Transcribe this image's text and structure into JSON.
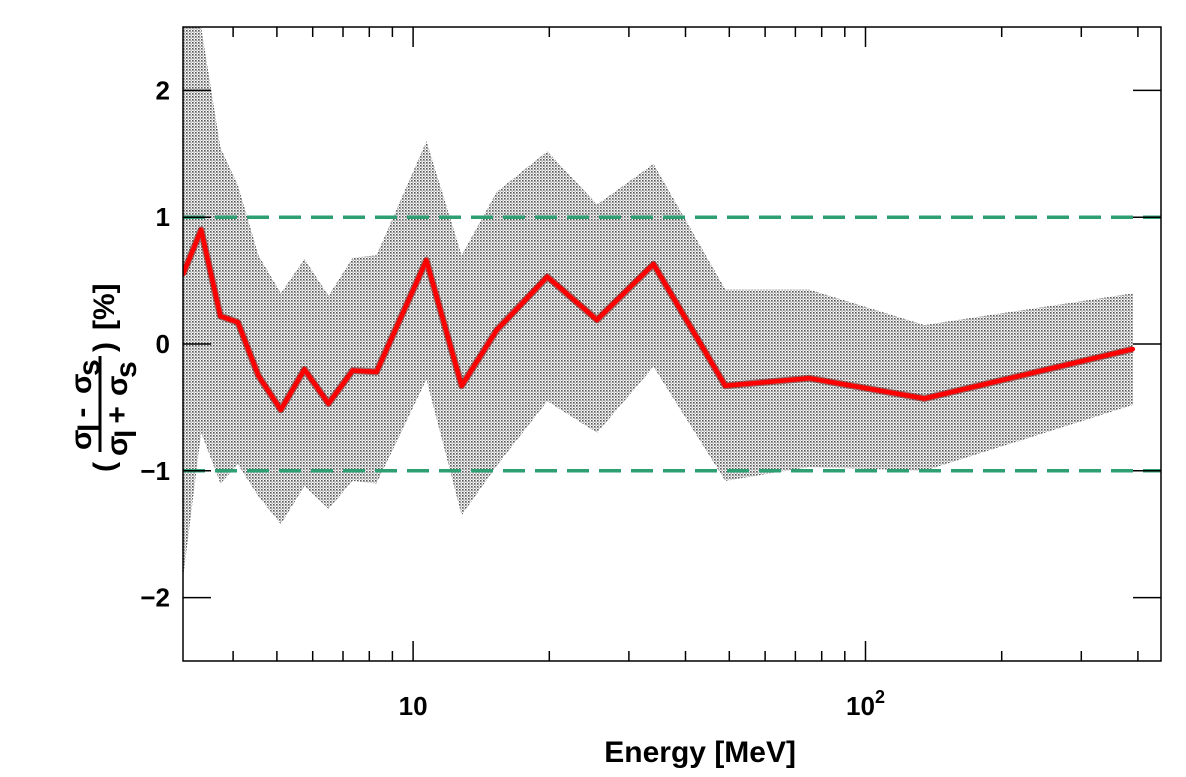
{
  "chart_data": {
    "type": "line",
    "xlabel": "Energy [MeV]",
    "ylabel": {
      "numerator": "σ",
      "numerator_sub_1": "l",
      "minus": " - ",
      "numerator_2": "σ",
      "numerator_sub_2": "s",
      "denominator": "σ",
      "denominator_sub_1": "l",
      "plus": " + ",
      "denominator_2": "σ",
      "denominator_sub_2": "s",
      "open_paren": "(",
      "close_paren": ")",
      "unit": "[%]"
    },
    "x_scale": "log",
    "xlim": [
      3.1,
      450
    ],
    "ylim": [
      -2.5,
      2.5
    ],
    "x_tick_labels": [
      {
        "value": 10,
        "base": "10",
        "exp": ""
      },
      {
        "value": 100,
        "base": "10",
        "exp": "2"
      }
    ],
    "y_tick_labels": [
      {
        "value": 2,
        "label": "2"
      },
      {
        "value": 1,
        "label": "1"
      },
      {
        "value": 0,
        "label": "0"
      },
      {
        "value": -1,
        "label": "−1"
      },
      {
        "value": -2,
        "label": "−2"
      }
    ],
    "grid": false,
    "reference_lines": [
      {
        "y": 1,
        "style": "dashed",
        "color": "#2e9e73"
      },
      {
        "y": -1,
        "style": "dashed",
        "color": "#2e9e73"
      }
    ],
    "series": [
      {
        "color": "#ff0000",
        "band_color": "#a8a8a8",
        "points": [
          {
            "x": 3.1,
            "y": 0.55,
            "upper": 2.95,
            "lower": -1.85
          },
          {
            "x": 3.4,
            "y": 0.9,
            "upper": 2.5,
            "lower": -0.7
          },
          {
            "x": 3.75,
            "y": 0.22,
            "upper": 1.55,
            "lower": -1.1
          },
          {
            "x": 4.1,
            "y": 0.17,
            "upper": 1.25,
            "lower": -0.95
          },
          {
            "x": 4.55,
            "y": -0.25,
            "upper": 0.7,
            "lower": -1.2
          },
          {
            "x": 5.1,
            "y": -0.52,
            "upper": 0.4,
            "lower": -1.42
          },
          {
            "x": 5.75,
            "y": -0.2,
            "upper": 0.67,
            "lower": -1.12
          },
          {
            "x": 6.5,
            "y": -0.47,
            "upper": 0.38,
            "lower": -1.3
          },
          {
            "x": 7.35,
            "y": -0.21,
            "upper": 0.68,
            "lower": -1.08
          },
          {
            "x": 8.3,
            "y": -0.22,
            "upper": 0.7,
            "lower": -1.1
          },
          {
            "x": 10.7,
            "y": 0.66,
            "upper": 1.6,
            "lower": -0.28
          },
          {
            "x": 12.8,
            "y": -0.33,
            "upper": 0.7,
            "lower": -1.35
          },
          {
            "x": 15.3,
            "y": 0.11,
            "upper": 1.2,
            "lower": -0.96
          },
          {
            "x": 19.8,
            "y": 0.53,
            "upper": 1.52,
            "lower": -0.45
          },
          {
            "x": 25.5,
            "y": 0.19,
            "upper": 1.1,
            "lower": -0.7
          },
          {
            "x": 34.0,
            "y": 0.63,
            "upper": 1.42,
            "lower": -0.18
          },
          {
            "x": 49.0,
            "y": -0.33,
            "upper": 0.43,
            "lower": -1.08
          },
          {
            "x": 75.0,
            "y": -0.27,
            "upper": 0.43,
            "lower": -0.97
          },
          {
            "x": 135.0,
            "y": -0.43,
            "upper": 0.15,
            "lower": -1.0
          },
          {
            "x": 390.0,
            "y": -0.04,
            "upper": 0.4,
            "lower": -0.48
          }
        ]
      }
    ]
  }
}
